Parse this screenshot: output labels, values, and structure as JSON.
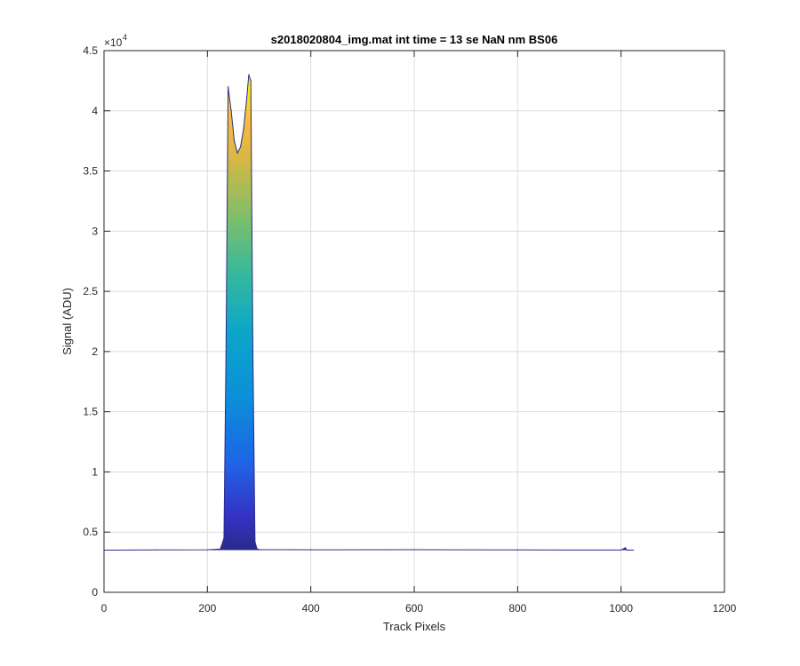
{
  "chart_data": {
    "type": "line",
    "title": "s2018020804_img.mat int time = 13 se  NaN nm BS06",
    "xlabel": "Track Pixels",
    "ylabel": "Signal (ADU)",
    "y_exponent_label": "×10",
    "y_exponent_power": "4",
    "xlim": [
      0,
      1200
    ],
    "ylim": [
      0,
      45000
    ],
    "x_ticks": [
      0,
      200,
      400,
      600,
      800,
      1000,
      1200
    ],
    "y_ticks": [
      0,
      5000,
      10000,
      15000,
      20000,
      25000,
      30000,
      35000,
      40000,
      45000
    ],
    "x_tick_labels": [
      "0",
      "200",
      "400",
      "600",
      "800",
      "1000",
      "1200"
    ],
    "y_tick_labels": [
      "0",
      "0.5",
      "1",
      "1.5",
      "2",
      "2.5",
      "3",
      "3.5",
      "4",
      "4.5"
    ],
    "grid": true,
    "colormap": "parula",
    "baseline_color": "#2b2a8a",
    "series": [
      {
        "x": [
          0,
          100,
          200,
          225,
          232,
          236,
          240,
          246,
          252,
          258,
          264,
          270,
          276,
          280,
          284,
          288,
          292,
          296,
          300,
          400,
          600,
          800,
          1000,
          1008,
          1012,
          1024
        ],
        "y": [
          3500,
          3520,
          3530,
          3600,
          4500,
          20000,
          42000,
          40000,
          37500,
          36500,
          37000,
          38500,
          41000,
          43000,
          42500,
          20000,
          4200,
          3600,
          3550,
          3530,
          3540,
          3520,
          3510,
          3700,
          3500,
          3500
        ]
      }
    ]
  }
}
